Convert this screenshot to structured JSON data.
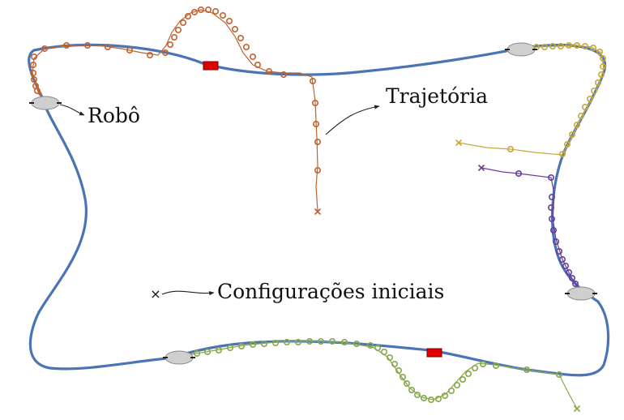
{
  "labels": {
    "robot": "Robô",
    "trajectory": "Trajetória",
    "initial_configs": "Configurações iniciais"
  },
  "colors": {
    "path": "#4a74b4",
    "robot_fill": "#cfcfcf",
    "robot_stroke": "#8a8a8a",
    "obstacle": "#e00000",
    "traj_orange": "#c0622e",
    "traj_yellow": "#c8a83c",
    "traj_purple": "#6a3d9a",
    "traj_green": "#86a84a",
    "arrow": "#222222"
  },
  "legend_marker": "×"
}
